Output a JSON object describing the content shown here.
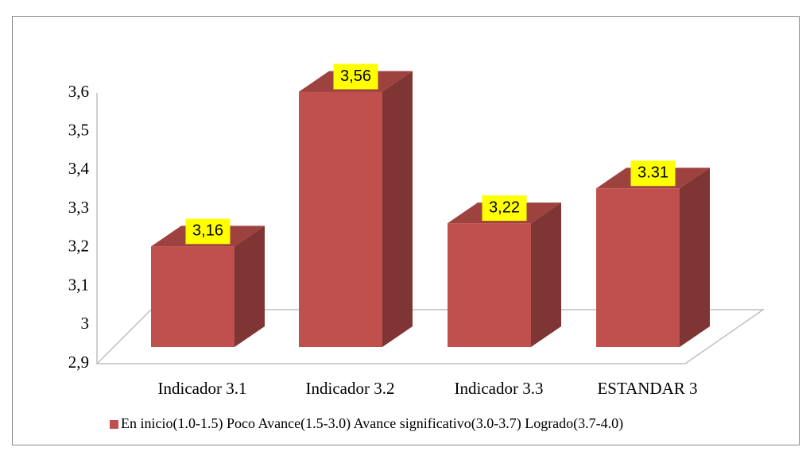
{
  "chart_data": {
    "type": "bar3d",
    "categories": [
      "Indicador 3.1",
      "Indicador 3.2",
      "Indicador 3.3",
      "ESTANDAR 3"
    ],
    "series": [
      {
        "name": "En inicio(1.0-1.5) Poco Avance(1.5-3.0) Avance significativo(3.0-3.7) Logrado(3.7-4.0)",
        "color": "#c0504d",
        "values": [
          3.16,
          3.56,
          3.22,
          3.31
        ],
        "value_labels": [
          "3,16",
          "3,56",
          "3,22",
          "3.31"
        ]
      }
    ],
    "ylim": [
      2.9,
      3.6
    ],
    "yticks": [
      {
        "value": 2.9,
        "label": "2,9"
      },
      3,
      {
        "value": 3.1,
        "label": "3,1"
      },
      {
        "value": 3.2,
        "label": "3,2"
      },
      {
        "value": 3.3,
        "label": "3,3"
      },
      {
        "value": 3.4,
        "label": "3,4"
      },
      {
        "value": 3.5,
        "label": "3,5"
      },
      {
        "value": 3.6,
        "label": "3,6"
      }
    ],
    "grid": false
  }
}
